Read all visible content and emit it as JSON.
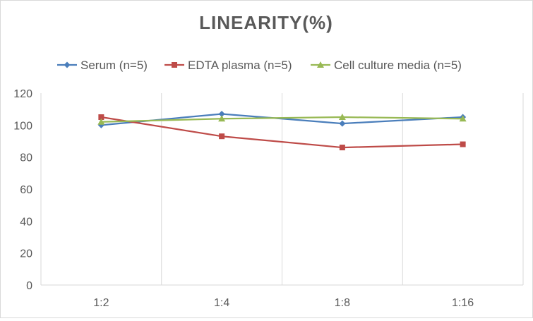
{
  "chart_data": {
    "type": "line",
    "title": "LINEARITY(%)",
    "xlabel": "",
    "ylabel": "",
    "categories": [
      "1:2",
      "1:4",
      "1:8",
      "1:16"
    ],
    "ylim": [
      0,
      120
    ],
    "yticks": [
      0,
      20,
      40,
      60,
      80,
      100,
      120
    ],
    "grid": "vertical",
    "legend": "top",
    "series": [
      {
        "name": "Serum (n=5)",
        "values": [
          100,
          107,
          101,
          105
        ],
        "color": "#4a7ebb",
        "marker": "diamond"
      },
      {
        "name": "EDTA plasma (n=5)",
        "values": [
          105,
          93,
          86,
          88
        ],
        "color": "#be4b48",
        "marker": "square"
      },
      {
        "name": "Cell culture media (n=5)",
        "values": [
          102,
          104,
          105,
          104
        ],
        "color": "#98b954",
        "marker": "triangle"
      }
    ]
  }
}
